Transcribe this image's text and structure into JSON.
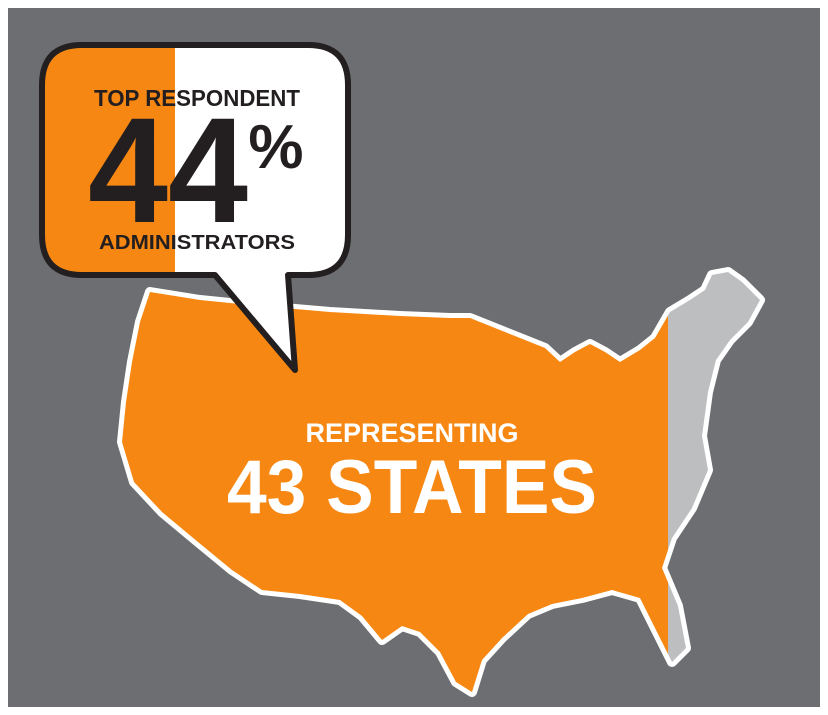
{
  "callout": {
    "heading": "TOP RESPONDENT",
    "figure": "44",
    "unit": "%",
    "label": "ADMINISTRATORS"
  },
  "map": {
    "caption": "REPRESENTING",
    "headline": "43 STATES"
  }
}
